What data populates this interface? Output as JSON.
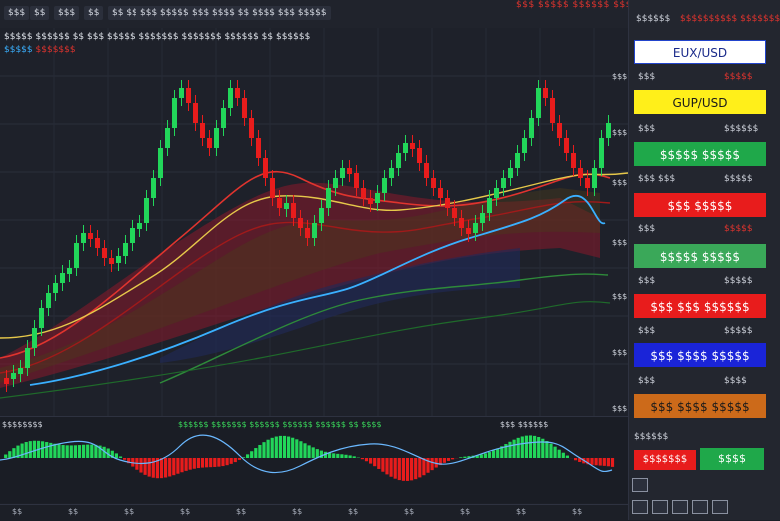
{
  "toolbar": {
    "buttons": [
      "$$$",
      "$$",
      "$$$",
      "$$",
      "$$ $$",
      "$$$ $$$$$",
      "$$$ $$$$ $$ $$$$ $$$ $$$$$"
    ],
    "alert": "$$$ $$$$$ $$$$$$ $$$ $$$$$$ $$$$$$$$$"
  },
  "legend": {
    "line1": "$$$$$ $$$$$$ $$ $$$ $$$$$ $$$$$$$ $$$$$$$ $$$$$$ $$ $$$$$$",
    "line2_blue": "$$$$$",
    "line2_red": "$$$$$$$"
  },
  "yaxis": [
    {
      "label": "$$$",
      "y": 72
    },
    {
      "label": "$$$",
      "y": 128
    },
    {
      "label": "$$$",
      "y": 178
    },
    {
      "label": "$$$",
      "y": 238
    },
    {
      "label": "$$$",
      "y": 292
    },
    {
      "label": "$$$",
      "y": 348
    },
    {
      "label": "$$$",
      "y": 404
    }
  ],
  "oscillator": {
    "label": "$$$$$$$$",
    "label_green": "$$$$$$ $$$$$$$ $$$$$$ $$$$$$ $$$$$$ $$ $$$$",
    "label_right": "$$$ $$$$$$"
  },
  "time_ticks": [
    "$$",
    "$$",
    "$$",
    "$$",
    "$$",
    "$$",
    "$$",
    "$$",
    "$$",
    "$$",
    "$$"
  ],
  "panel": {
    "title": "$$$$$$",
    "alert": "$$$$$$$$$$ $$$$$$$$",
    "symbols": [
      {
        "label": "EUX/USD",
        "bg": "#ffffff",
        "fg": "#1a2a8a",
        "border": "#2244cc"
      },
      {
        "label": "GUP/USD",
        "bg": "#ffef1a",
        "fg": "#1a1a1a",
        "border": "#ffef1a"
      },
      {
        "label": "$$$$$ $$$$$",
        "bg": "#1fa84a",
        "fg": "#ffffff",
        "border": "#1fa84a"
      },
      {
        "label": "$$$ $$$$$",
        "bg": "#e81c1c",
        "fg": "#ffffff",
        "border": "#e81c1c"
      },
      {
        "label": "$$$$$ $$$$$",
        "bg": "#3aa859",
        "fg": "#ffffff",
        "border": "#3aa859"
      },
      {
        "label": "$$$ $$$ $$$$$$",
        "bg": "#e81c1c",
        "fg": "#ffffff",
        "border": "#e81c1c"
      },
      {
        "label": "$$$ $$$$ $$$$$",
        "bg": "#1a24d8",
        "fg": "#ffffff",
        "border": "#1a24d8"
      },
      {
        "label": "$$$ $$$$ $$$$$",
        "bg": "#cc6a1a",
        "fg": "#1a1a1a",
        "border": "#cc6a1a"
      }
    ],
    "rows": [
      {
        "lbl": "$$$",
        "val": "$$$$$",
        "color": "#e0342e"
      },
      {
        "lbl": "$$$",
        "val": "$$$$$$",
        "color": "#cfd3dc"
      },
      {
        "lbl": "$$$ $$$",
        "val": "$$$$$",
        "color": "#cfd3dc"
      },
      {
        "lbl": "$$$",
        "val": "$$$$$",
        "color": "#e0342e"
      },
      {
        "lbl": "$$$",
        "val": "$$$$$",
        "color": "#cfd3dc"
      },
      {
        "lbl": "$$$",
        "val": "$$$$$",
        "color": "#cfd3dc"
      },
      {
        "lbl": "$$$",
        "val": "$$$$",
        "color": "#cfd3dc"
      }
    ],
    "order_title": "$$$$$$",
    "sell_label": "$$$$$$$",
    "buy_label": "$$$$"
  }
}
